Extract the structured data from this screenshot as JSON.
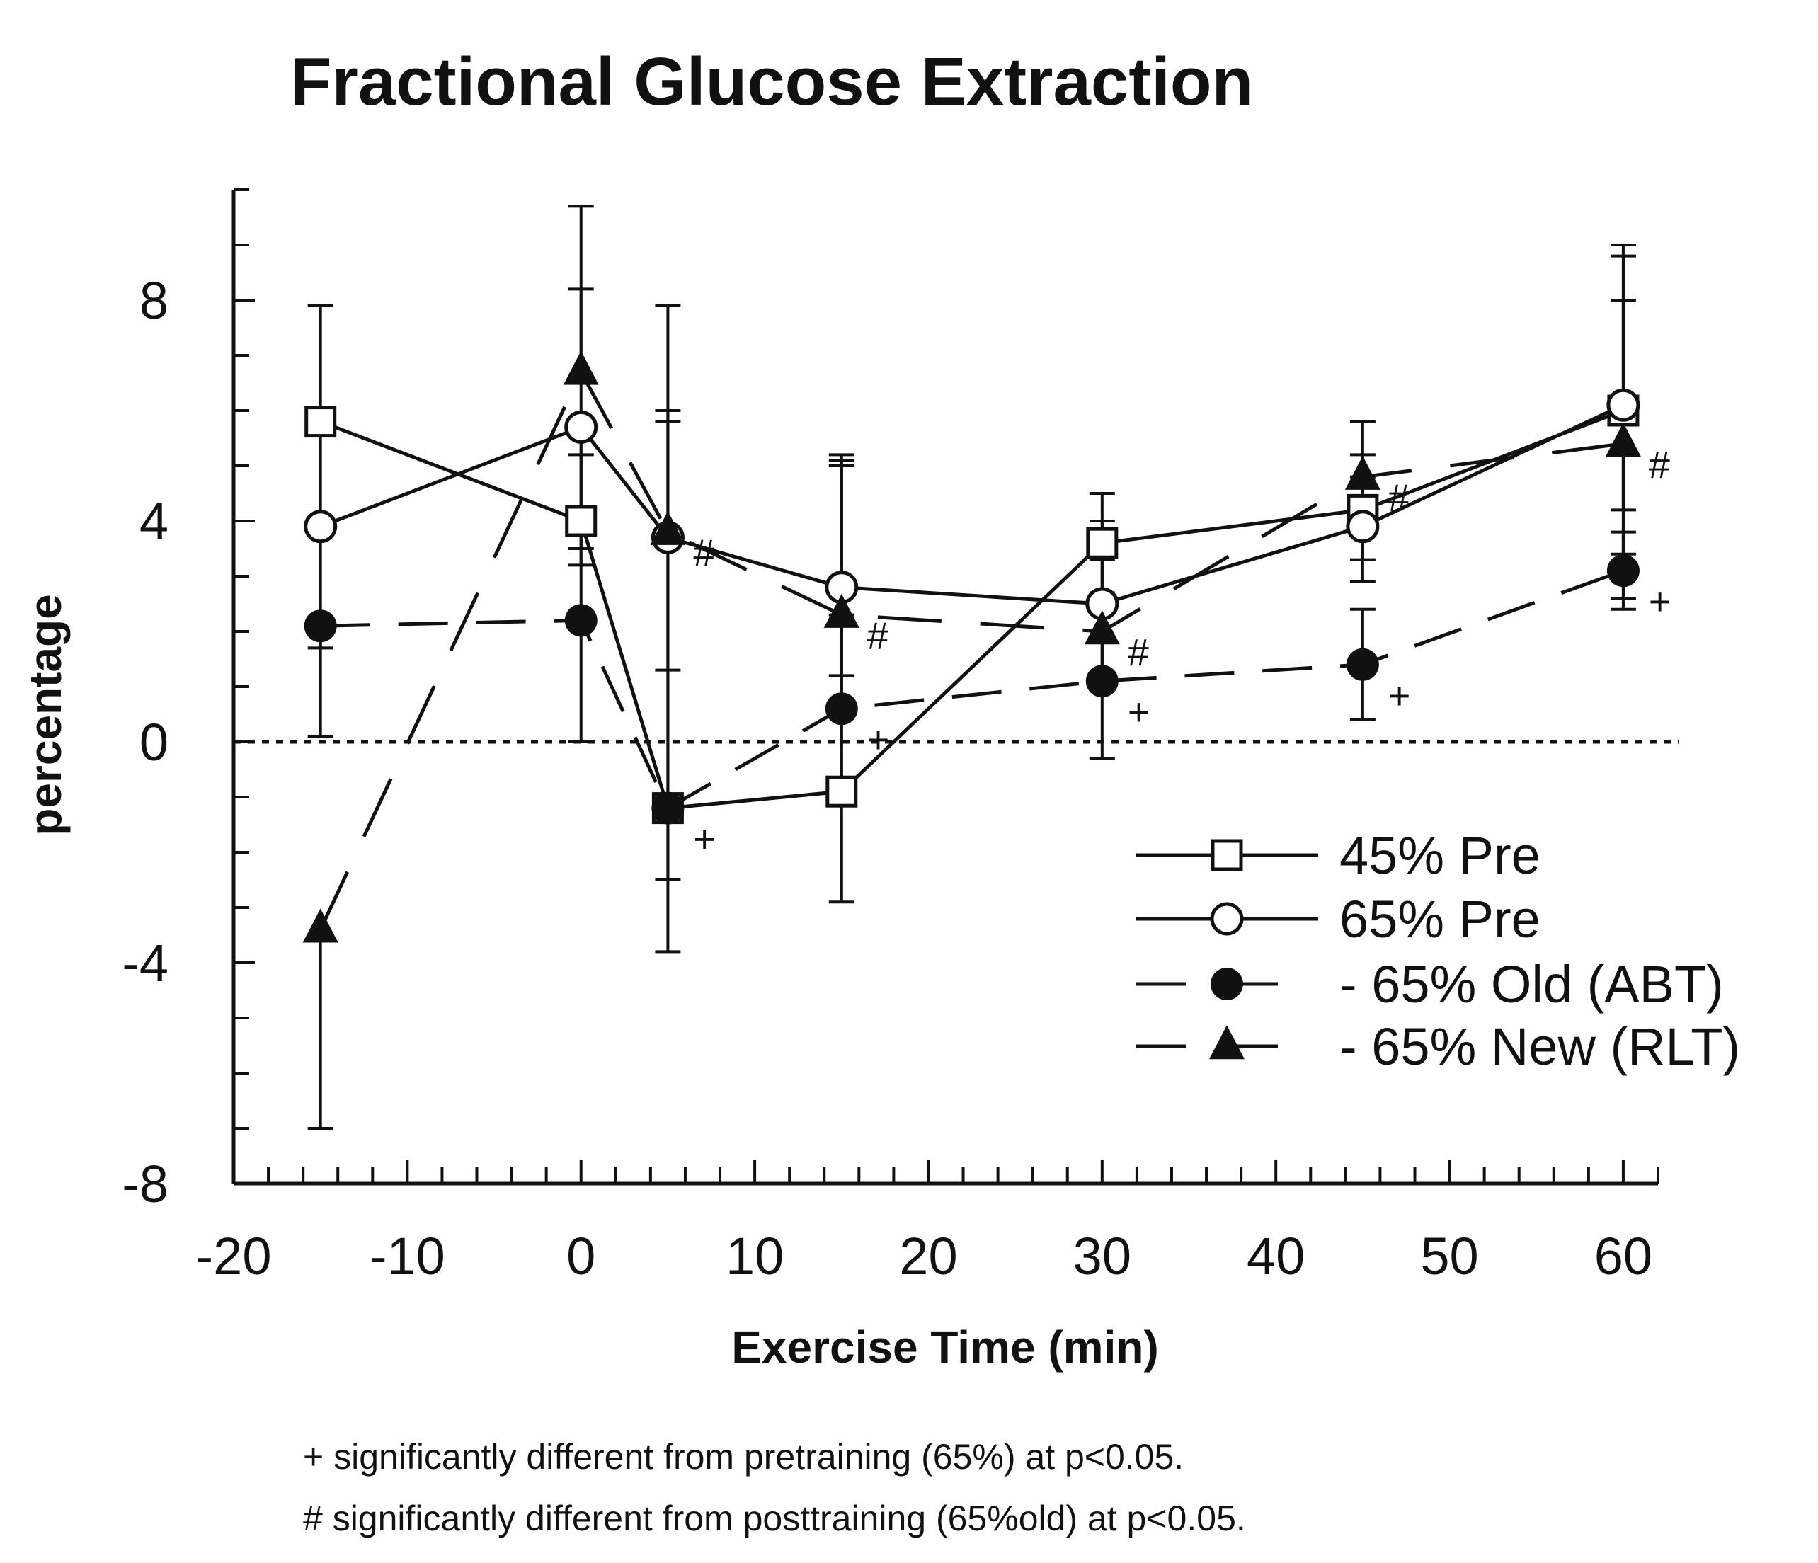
{
  "chart_data": {
    "type": "line",
    "title": "Fractional Glucose Extraction",
    "xlabel": "Exercise Time (min)",
    "ylabel": "percentage",
    "xlim": [
      -20,
      62
    ],
    "ylim": [
      -8,
      10
    ],
    "xticks": [
      -20,
      -10,
      0,
      10,
      20,
      30,
      40,
      50,
      60
    ],
    "yticks": [
      -8,
      -4,
      0,
      4,
      8
    ],
    "xtick_labels": [
      "-20",
      "-10",
      "0",
      "10",
      "20",
      "30",
      "40",
      "50",
      "60"
    ],
    "ytick_labels": [
      "-8",
      "-4",
      "0",
      "4",
      "8"
    ],
    "x": [
      -15,
      0,
      5,
      15,
      30,
      45,
      60
    ],
    "reference_line": 0,
    "series": [
      {
        "name": "45% Pre",
        "legend_label": "45% Pre",
        "marker": "square-open",
        "line": "solid",
        "values": [
          5.8,
          4.0,
          -1.2,
          -0.9,
          3.6,
          4.2,
          6.0
        ],
        "err_low": [
          null,
          3.2,
          null,
          -2.9,
          2.6,
          3.3,
          4.2
        ],
        "err_high": [
          null,
          5.2,
          null,
          5.2,
          4.5,
          5.2,
          8.8
        ]
      },
      {
        "name": "65% Pre",
        "legend_label": "65% Pre",
        "marker": "circle-open",
        "line": "solid",
        "values": [
          3.9,
          5.7,
          3.7,
          2.8,
          2.5,
          3.9,
          6.1
        ],
        "err_low": [
          0.1,
          3.5,
          1.3,
          0.6,
          1.1,
          2.9,
          3.4
        ],
        "err_high": [
          7.9,
          8.2,
          6.0,
          5.1,
          4.0,
          4.8,
          9.0
        ]
      },
      {
        "name": "65% Old (ABT)",
        "legend_label": "- 65% Old (ABT)",
        "marker": "circle-filled",
        "line": "dash",
        "values": [
          2.1,
          2.2,
          -1.2,
          0.6,
          1.1,
          1.4,
          3.1
        ],
        "err_low": [
          1.7,
          0.0,
          -3.8,
          -0.8,
          -0.3,
          0.4,
          2.6
        ],
        "err_high": [
          null,
          5.8,
          7.9,
          2.3,
          2.7,
          2.4,
          3.8
        ]
      },
      {
        "name": "65% New (RLT)",
        "legend_label": "- 65% New (RLT)",
        "marker": "triangle-filled",
        "line": "longdash",
        "values": [
          -3.4,
          6.7,
          3.8,
          2.3,
          2.0,
          4.8,
          5.4
        ],
        "err_low": [
          -7.0,
          null,
          -2.5,
          1.2,
          1.0,
          3.9,
          2.4
        ],
        "err_high": [
          null,
          9.7,
          5.8,
          5.0,
          3.3,
          5.8,
          8.0
        ]
      }
    ],
    "annotations": [
      {
        "symbol": "#",
        "x": 5,
        "y": 3.8
      },
      {
        "symbol": "+",
        "x": 5,
        "y": -1.2
      },
      {
        "symbol": "#",
        "x": 15,
        "y": 2.3
      },
      {
        "symbol": "+",
        "x": 15,
        "y": 0.6
      },
      {
        "symbol": "#",
        "x": 30,
        "y": 2.0
      },
      {
        "symbol": "+",
        "x": 30,
        "y": 1.1
      },
      {
        "symbol": "#",
        "x": 45,
        "y": 4.8
      },
      {
        "symbol": "+",
        "x": 45,
        "y": 1.4
      },
      {
        "symbol": "#",
        "x": 60,
        "y": 5.4
      },
      {
        "symbol": "+",
        "x": 60,
        "y": 3.1
      }
    ],
    "legend_position": "right",
    "footnotes": [
      "+ significantly different from pretraining (65%) at p<0.05.",
      "# significantly different from posttraining (65%old) at p<0.05."
    ]
  }
}
